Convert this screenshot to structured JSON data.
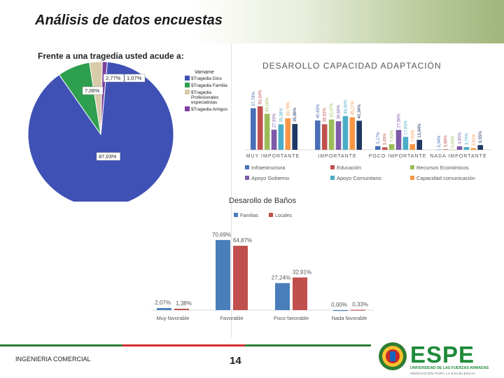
{
  "slide": {
    "title": "Análisis de datos encuestas",
    "footer_left": "INGENIERIA COMERCIAL",
    "page_number": "14",
    "logo": {
      "text": "ESPE",
      "subtitle": "UNIVERSIDAD DE LAS FUERZAS ARMADAS",
      "tagline": "INNOVACIÓN PARA LA EXCELENCIA"
    }
  },
  "colors": {
    "blue": "#4a6fb8",
    "red": "#c0504d",
    "green": "#4f9d4f",
    "cyan": "#4bacc6",
    "orange": "#f79646",
    "purple": "#7f5aa8",
    "navy": "#1f3864",
    "tan": "#d8cba8",
    "logo_green": "#1f8a3a"
  },
  "chart_data": [
    {
      "type": "pie",
      "title": "Frente a una tragedia usted acude a:",
      "legend_title": "Varname",
      "legend_position": "right",
      "slices": [
        {
          "name": "$Tragedia Dios",
          "value": 87.03,
          "label": "87,03%",
          "color": "#3f51b5"
        },
        {
          "name": "$Tragedia Familia",
          "value": 7.06,
          "label": "7,06%",
          "color": "#2e9e4f"
        },
        {
          "name": "$Tragedia Profesionales especialistas",
          "value": 2.77,
          "label": "2,77%",
          "color": "#d8cba8"
        },
        {
          "name": "$Tragedia Amigos",
          "value": 1.07,
          "label": "1,07%",
          "color": "#7b3fa0"
        }
      ]
    },
    {
      "type": "bar",
      "title": "DESAROLLO CAPACIDAD ADAPTACIÓN",
      "categories": [
        "MUY IMPORTANTE",
        "IMPORTANTE",
        "POCO IMPORTANTE",
        "NADA IMPORTANTE"
      ],
      "legend_position": "bottom",
      "series": [
        {
          "name": "Infraestructura",
          "color": "#4a6fb8",
          "values": [
            57.78,
            40.69,
            5.17,
            0.34
          ],
          "labels": [
            "57,78%",
            "40,69%",
            "5,17%",
            "0,34%"
          ]
        },
        {
          "name": "Educación",
          "color": "#c0504d",
          "values": [
            60.34,
            35.52,
            3.45,
            0.69
          ],
          "labels": [
            "60,34%",
            "35,52%",
            "3,45%",
            "0,69%"
          ]
        },
        {
          "name": "Recursos Económicos",
          "color": "#9bbb59",
          "values": [
            50.0,
            42.07,
            7.93,
            0.0
          ],
          "labels": [
            "50,00%",
            "42,07%",
            "7,93%",
            "0,00%"
          ]
        },
        {
          "name": "Apoyo Gobierno",
          "color": "#7f5aa8",
          "values": [
            27.93,
            39.66,
            27.59,
            4.83
          ],
          "labels": [
            "27,93%",
            "39,66%",
            "27,59%",
            "4,83%"
          ]
        },
        {
          "name": "Apoyo Comunitario",
          "color": "#4bacc6",
          "values": [
            35.38,
            46.9,
            17.93,
            3.79
          ],
          "labels": [
            "35,38%",
            "46,90%",
            "17,93%",
            "3,79%"
          ]
        },
        {
          "name": "Capacidad comunicación",
          "color": "#f79646",
          "values": [
            43.79,
            45.17,
            7.93,
            2.41
          ],
          "labels": [
            "43,79%",
            "45,17%",
            "7,93%",
            "2,41%"
          ]
        },
        {
          "name": "",
          "color": "#1f3864",
          "values": [
            35.86,
            40.34,
            13.84,
            6.55
          ],
          "labels": [
            "35,86%",
            "40,34%",
            "13,84%",
            "6,55%"
          ]
        }
      ],
      "ylim": [
        0,
        70
      ]
    },
    {
      "type": "bar",
      "title": "Desarollo de Baños",
      "categories": [
        "Muy favorable",
        "Favorable",
        "Poco favorable",
        "Nada favorable"
      ],
      "legend_position": "top-left",
      "series": [
        {
          "name": "Familias",
          "color": "#4a7ebb",
          "values": [
            2.07,
            70.69,
            27.24,
            0.0
          ],
          "labels": [
            "2,07%",
            "70,69%",
            "27,24%",
            "0,00%"
          ]
        },
        {
          "name": "Locales",
          "color": "#c0504d",
          "values": [
            1.38,
            64.87,
            32.91,
            0.33
          ],
          "labels": [
            "1,38%",
            "64,87%",
            "32,91%",
            "0,33%"
          ]
        }
      ],
      "ylim": [
        0,
        75
      ]
    }
  ]
}
